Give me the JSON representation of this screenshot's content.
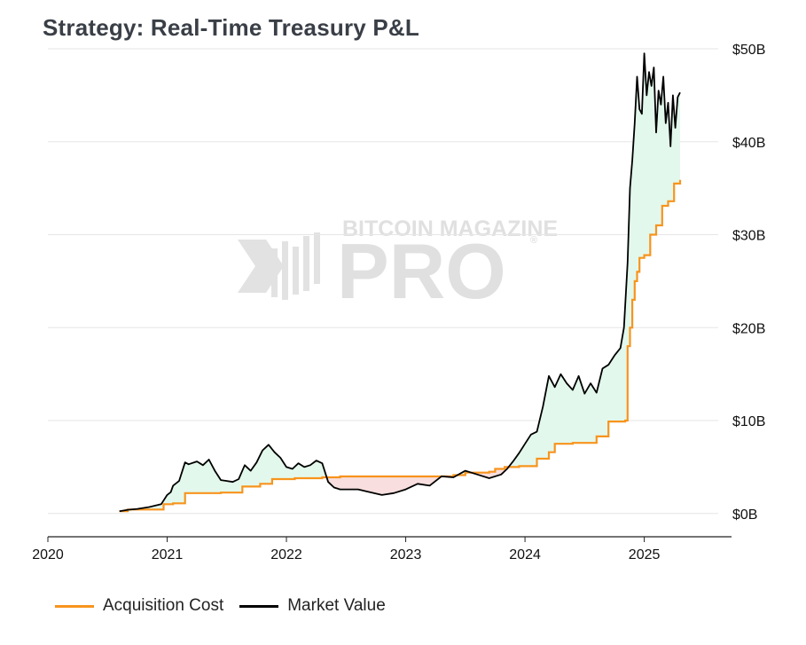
{
  "header": {
    "title": "Strategy: Real-Time Treasury P&L"
  },
  "watermark": {
    "line1": "BITCOIN MAGAZINE",
    "line2": "PRO",
    "registered": "®"
  },
  "colors": {
    "acquisition": "#f7941d",
    "market": "#000000",
    "profit_fill": "#e3f8ec",
    "loss_fill": "#f8dede",
    "grid": "#e6e6e6"
  },
  "legend": [
    {
      "label": "Acquisition Cost",
      "color": "#f7941d"
    },
    {
      "label": "Market Value",
      "color": "#000000"
    }
  ],
  "chart_data": {
    "type": "line",
    "title": "Strategy: Real-Time Treasury P&L",
    "xlabel": "",
    "ylabel": "",
    "xlim": [
      2020.0,
      2025.62
    ],
    "ylim": [
      -2.5,
      50
    ],
    "y_ticks": [
      0,
      10,
      20,
      30,
      40,
      50
    ],
    "y_tick_labels": [
      "$0B",
      "$10B",
      "$20B",
      "$30B",
      "$40B",
      "$50B"
    ],
    "x_ticks": [
      2020,
      2021,
      2022,
      2023,
      2024,
      2025
    ],
    "x_tick_labels": [
      "2020",
      "2021",
      "2022",
      "2023",
      "2024",
      "2025"
    ],
    "y_axis_position": "right",
    "grid": true,
    "series": [
      {
        "name": "Acquisition Cost",
        "step": true,
        "x": [
          2020.6,
          2020.67,
          2020.97,
          2021.05,
          2021.15,
          2021.45,
          2021.63,
          2021.78,
          2021.88,
          2022.07,
          2022.3,
          2022.45,
          2023.4,
          2023.5,
          2023.7,
          2023.75,
          2023.83,
          2023.95,
          2024.1,
          2024.2,
          2024.25,
          2024.33,
          2024.4,
          2024.6,
          2024.7,
          2024.84,
          2024.86,
          2024.88,
          2024.9,
          2024.92,
          2024.94,
          2024.96,
          2025.0,
          2025.05,
          2025.1,
          2025.15,
          2025.2,
          2025.25,
          2025.3
        ],
        "values": [
          0.25,
          0.43,
          1.0,
          1.1,
          2.2,
          2.25,
          2.9,
          3.2,
          3.7,
          3.8,
          3.9,
          3.99,
          4.13,
          4.4,
          4.5,
          4.8,
          5.0,
          5.1,
          5.9,
          6.6,
          7.5,
          7.5,
          7.6,
          8.3,
          9.9,
          10.0,
          18.0,
          20.0,
          23.0,
          25.0,
          26.0,
          27.5,
          27.8,
          30.0,
          31.0,
          33.1,
          33.6,
          35.5,
          35.9
        ]
      },
      {
        "name": "Market Value",
        "x": [
          2020.6,
          2020.67,
          2020.75,
          2020.85,
          2020.95,
          2021.0,
          2021.03,
          2021.05,
          2021.1,
          2021.15,
          2021.18,
          2021.25,
          2021.3,
          2021.35,
          2021.4,
          2021.45,
          2021.5,
          2021.55,
          2021.6,
          2021.65,
          2021.7,
          2021.75,
          2021.8,
          2021.85,
          2021.9,
          2021.95,
          2022.0,
          2022.05,
          2022.1,
          2022.15,
          2022.2,
          2022.25,
          2022.3,
          2022.35,
          2022.4,
          2022.45,
          2022.5,
          2022.6,
          2022.7,
          2022.8,
          2022.9,
          2023.0,
          2023.1,
          2023.2,
          2023.3,
          2023.4,
          2023.5,
          2023.6,
          2023.7,
          2023.8,
          2023.85,
          2023.9,
          2023.95,
          2024.0,
          2024.05,
          2024.1,
          2024.15,
          2024.2,
          2024.25,
          2024.3,
          2024.35,
          2024.4,
          2024.45,
          2024.5,
          2024.55,
          2024.6,
          2024.65,
          2024.7,
          2024.75,
          2024.8,
          2024.83,
          2024.86,
          2024.88,
          2024.9,
          2024.92,
          2024.94,
          2024.96,
          2024.98,
          2025.0,
          2025.02,
          2025.04,
          2025.06,
          2025.08,
          2025.1,
          2025.12,
          2025.14,
          2025.16,
          2025.18,
          2025.2,
          2025.22,
          2025.24,
          2025.26,
          2025.28,
          2025.3
        ],
        "values": [
          0.25,
          0.4,
          0.5,
          0.7,
          1.0,
          2.0,
          2.3,
          3.0,
          3.5,
          5.5,
          5.3,
          5.6,
          5.2,
          5.8,
          4.6,
          3.6,
          3.5,
          3.4,
          3.7,
          5.2,
          4.6,
          5.5,
          6.8,
          7.4,
          6.6,
          6.0,
          5.0,
          4.8,
          5.4,
          5.0,
          5.2,
          5.7,
          5.4,
          3.4,
          2.8,
          2.6,
          2.6,
          2.6,
          2.3,
          2.0,
          2.2,
          2.6,
          3.2,
          3.0,
          4.0,
          3.9,
          4.6,
          4.2,
          3.8,
          4.2,
          4.8,
          5.6,
          6.5,
          7.5,
          8.5,
          8.8,
          11.5,
          14.8,
          13.6,
          15.0,
          14.0,
          13.3,
          14.8,
          12.9,
          14.0,
          13.0,
          15.6,
          16.0,
          17.0,
          17.8,
          20.0,
          27.0,
          35.0,
          38.0,
          42.0,
          47.0,
          43.5,
          43.0,
          49.5,
          45.0,
          47.5,
          46.0,
          48.0,
          41.0,
          45.5,
          44.0,
          47.0,
          42.0,
          44.2,
          39.5,
          45.0,
          41.5,
          44.8,
          45.3
        ]
      }
    ]
  }
}
